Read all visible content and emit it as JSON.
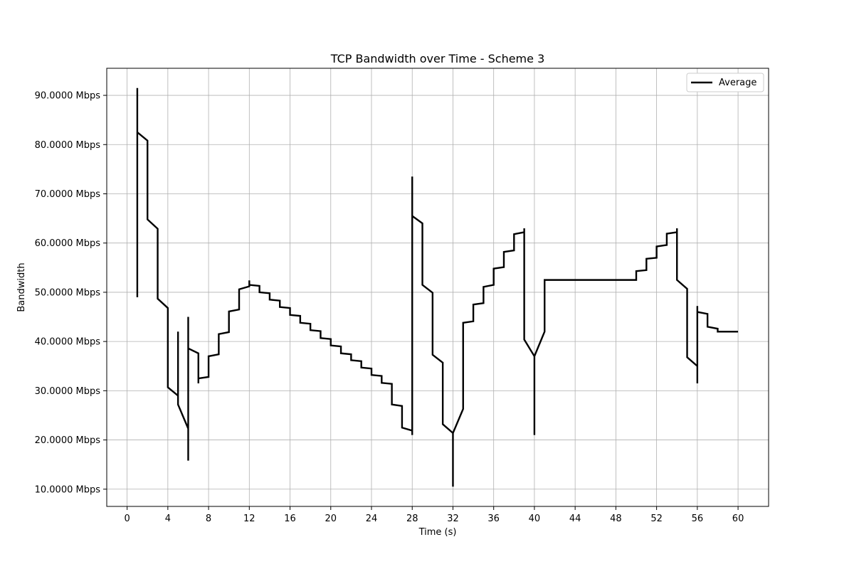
{
  "chart_data": {
    "type": "line",
    "title": "TCP Bandwidth over Time - Scheme 3",
    "xlabel": "Time (s)",
    "ylabel": "Bandwidth",
    "xlim": [
      -2,
      63
    ],
    "ylim": [
      6.5,
      95.5
    ],
    "xticks": [
      0,
      4,
      8,
      12,
      16,
      20,
      24,
      28,
      32,
      36,
      40,
      44,
      48,
      52,
      56,
      60
    ],
    "yticks": [
      10,
      20,
      30,
      40,
      50,
      60,
      70,
      80,
      90
    ],
    "ytick_suffix": " Mbps",
    "ytick_decimals": 4,
    "grid": true,
    "legend": "top-right",
    "series": [
      {
        "name": "Average",
        "color": "#000000",
        "points": [
          [
            1,
            49.0
          ],
          [
            1,
            91.5
          ],
          [
            1,
            82.5
          ],
          [
            2,
            80.8
          ],
          [
            2,
            64.8
          ],
          [
            3,
            62.9
          ],
          [
            3,
            48.7
          ],
          [
            4,
            46.8
          ],
          [
            4,
            30.7
          ],
          [
            5,
            29.0
          ],
          [
            5,
            42.0
          ],
          [
            5,
            27.2
          ],
          [
            6,
            22.3
          ],
          [
            6,
            45.0
          ],
          [
            6,
            15.8
          ],
          [
            6,
            38.6
          ],
          [
            7,
            37.6
          ],
          [
            7,
            31.5
          ],
          [
            7,
            32.5
          ],
          [
            8,
            32.8
          ],
          [
            8,
            37.0
          ],
          [
            9,
            37.4
          ],
          [
            9,
            41.5
          ],
          [
            10,
            41.9
          ],
          [
            10,
            46.1
          ],
          [
            11,
            46.5
          ],
          [
            11,
            50.6
          ],
          [
            12,
            51.2
          ],
          [
            12,
            52.4
          ],
          [
            12,
            51.5
          ],
          [
            13,
            51.3
          ],
          [
            13,
            50.0
          ],
          [
            14,
            49.8
          ],
          [
            14,
            48.5
          ],
          [
            15,
            48.3
          ],
          [
            15,
            47.0
          ],
          [
            16,
            46.8
          ],
          [
            16,
            45.4
          ],
          [
            17,
            45.2
          ],
          [
            17,
            43.8
          ],
          [
            18,
            43.6
          ],
          [
            18,
            42.3
          ],
          [
            19,
            42.1
          ],
          [
            19,
            40.7
          ],
          [
            20,
            40.5
          ],
          [
            20,
            39.2
          ],
          [
            21,
            39.0
          ],
          [
            21,
            37.6
          ],
          [
            22,
            37.4
          ],
          [
            22,
            36.2
          ],
          [
            23,
            36.0
          ],
          [
            23,
            34.7
          ],
          [
            24,
            34.5
          ],
          [
            24,
            33.2
          ],
          [
            25,
            33.0
          ],
          [
            25,
            31.6
          ],
          [
            26,
            31.4
          ],
          [
            26,
            27.2
          ],
          [
            27,
            26.9
          ],
          [
            27,
            22.5
          ],
          [
            28,
            21.9
          ],
          [
            28,
            21.0
          ],
          [
            28,
            73.5
          ],
          [
            28,
            65.5
          ],
          [
            29,
            64.0
          ],
          [
            29,
            51.5
          ],
          [
            30,
            49.9
          ],
          [
            30,
            37.3
          ],
          [
            31,
            35.7
          ],
          [
            31,
            23.2
          ],
          [
            32,
            21.4
          ],
          [
            32,
            10.5
          ],
          [
            32,
            21.4
          ],
          [
            33,
            26.3
          ],
          [
            33,
            43.8
          ],
          [
            34,
            44.1
          ],
          [
            34,
            47.5
          ],
          [
            35,
            47.8
          ],
          [
            35,
            51.1
          ],
          [
            36,
            51.5
          ],
          [
            36,
            54.8
          ],
          [
            37,
            55.1
          ],
          [
            37,
            58.2
          ],
          [
            38,
            58.5
          ],
          [
            38,
            61.8
          ],
          [
            39,
            62.2
          ],
          [
            39,
            63.0
          ],
          [
            39,
            40.4
          ],
          [
            40,
            37.0
          ],
          [
            40,
            21.0
          ],
          [
            40,
            37.0
          ],
          [
            41,
            42.0
          ],
          [
            41,
            52.5
          ],
          [
            50,
            52.5
          ],
          [
            50,
            54.3
          ],
          [
            51,
            54.5
          ],
          [
            51,
            56.8
          ],
          [
            52,
            57.0
          ],
          [
            52,
            59.3
          ],
          [
            53,
            59.6
          ],
          [
            53,
            61.9
          ],
          [
            54,
            62.2
          ],
          [
            54,
            63.0
          ],
          [
            54,
            52.5
          ],
          [
            55,
            50.7
          ],
          [
            55,
            36.8
          ],
          [
            56,
            35.0
          ],
          [
            56,
            31.5
          ],
          [
            56,
            47.2
          ],
          [
            56,
            46.0
          ],
          [
            57,
            45.6
          ],
          [
            57,
            43.0
          ],
          [
            58,
            42.6
          ],
          [
            58,
            42.0
          ],
          [
            60,
            42.0
          ]
        ]
      }
    ]
  }
}
